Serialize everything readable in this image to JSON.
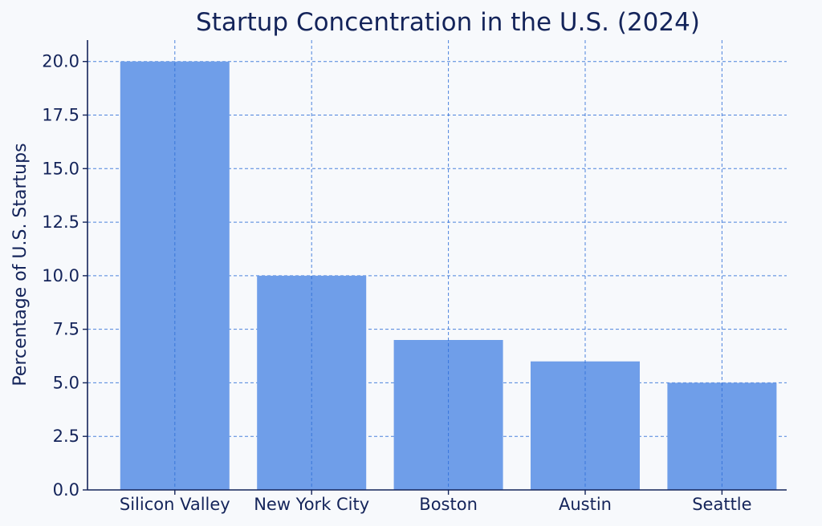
{
  "chart_data": {
    "type": "bar",
    "title": "Startup Concentration in the U.S. (2024)",
    "xlabel": "",
    "ylabel": "Percentage of U.S. Startups",
    "categories": [
      "Silicon Valley",
      "New York City",
      "Boston",
      "Austin",
      "Seattle"
    ],
    "values": [
      20,
      10,
      7,
      6,
      5
    ],
    "ylim": [
      0,
      21
    ],
    "yticks": [
      "0.0",
      "2.5",
      "5.0",
      "7.5",
      "10.0",
      "12.5",
      "15.0",
      "17.5",
      "20.0"
    ],
    "grid": true,
    "legend": "none",
    "colors": {
      "bar": "#6f9ee9",
      "grid": "#2f6fd8",
      "text": "#14245a",
      "background": "#f7f9fc"
    }
  }
}
